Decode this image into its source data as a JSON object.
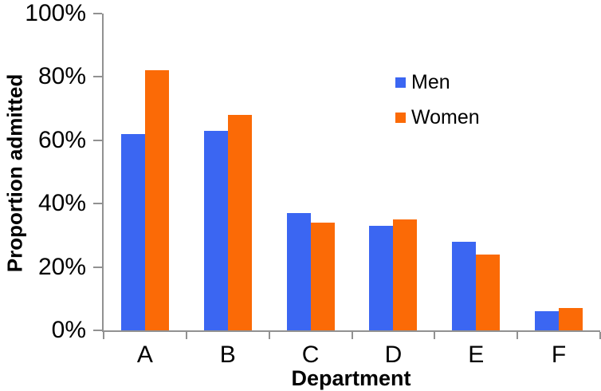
{
  "chart_data": {
    "type": "bar",
    "title": "",
    "xlabel": "Department",
    "ylabel": "Proportion admitted",
    "categories": [
      "A",
      "B",
      "C",
      "D",
      "E",
      "F"
    ],
    "series": [
      {
        "name": "Men",
        "color": "#3B66F2",
        "values": [
          62,
          63,
          37,
          33,
          28,
          6
        ]
      },
      {
        "name": "Women",
        "color": "#FB6A06",
        "values": [
          82,
          68,
          34,
          35,
          24,
          7
        ]
      }
    ],
    "ylim": [
      0,
      100
    ],
    "yticks": [
      0,
      20,
      40,
      60,
      80,
      100
    ],
    "ytick_suffix": "%",
    "grid": false,
    "legend_position": "upper-right-inside",
    "axis_color": "#919191",
    "text_color": "#000000",
    "background_color": "#FFFFFF"
  }
}
